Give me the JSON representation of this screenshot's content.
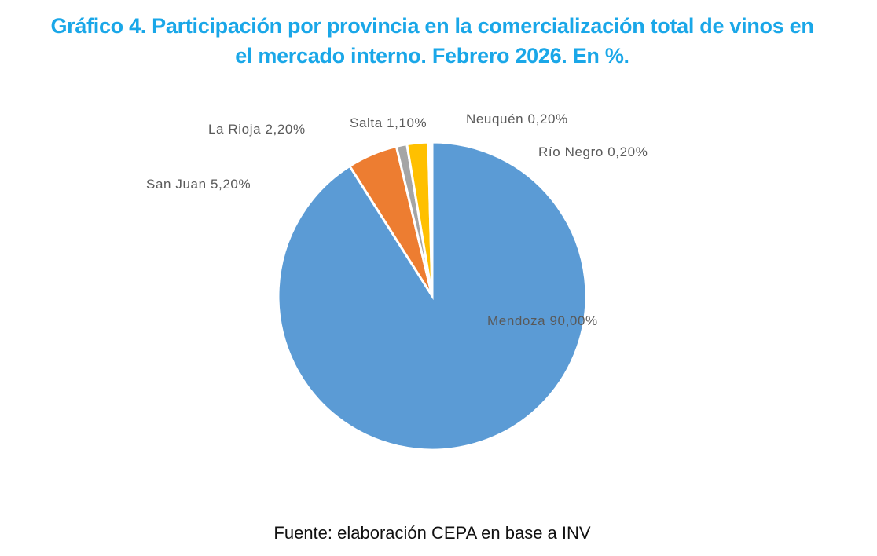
{
  "chart_data": {
    "type": "pie",
    "title_line1": "Gráfico 4. Participación por provincia en la comercialización total de vinos en",
    "title_line2": "el mercado interno. Febrero 2026. En %.",
    "source": "Fuente: elaboración CEPA en base a INV",
    "slices": [
      {
        "name": "Mendoza",
        "value": 90.0,
        "label": "Mendoza 90,00%",
        "color": "#5b9bd5"
      },
      {
        "name": "San Juan",
        "value": 5.2,
        "label": "San Juan 5,20%",
        "color": "#ed7d31"
      },
      {
        "name": "Salta",
        "value": 1.1,
        "label": "Salta 1,10%",
        "color": "#a5a5a5"
      },
      {
        "name": "La Rioja",
        "value": 2.2,
        "label": "La Rioja 2,20%",
        "color": "#ffc000"
      },
      {
        "name": "Neuquén",
        "value": 0.2,
        "label": "Neuquén 0,20%",
        "color": "#4472c4"
      },
      {
        "name": "Río Negro",
        "value": 0.2,
        "label": "Río Negro 0,20%",
        "color": "#70ad47"
      }
    ]
  }
}
